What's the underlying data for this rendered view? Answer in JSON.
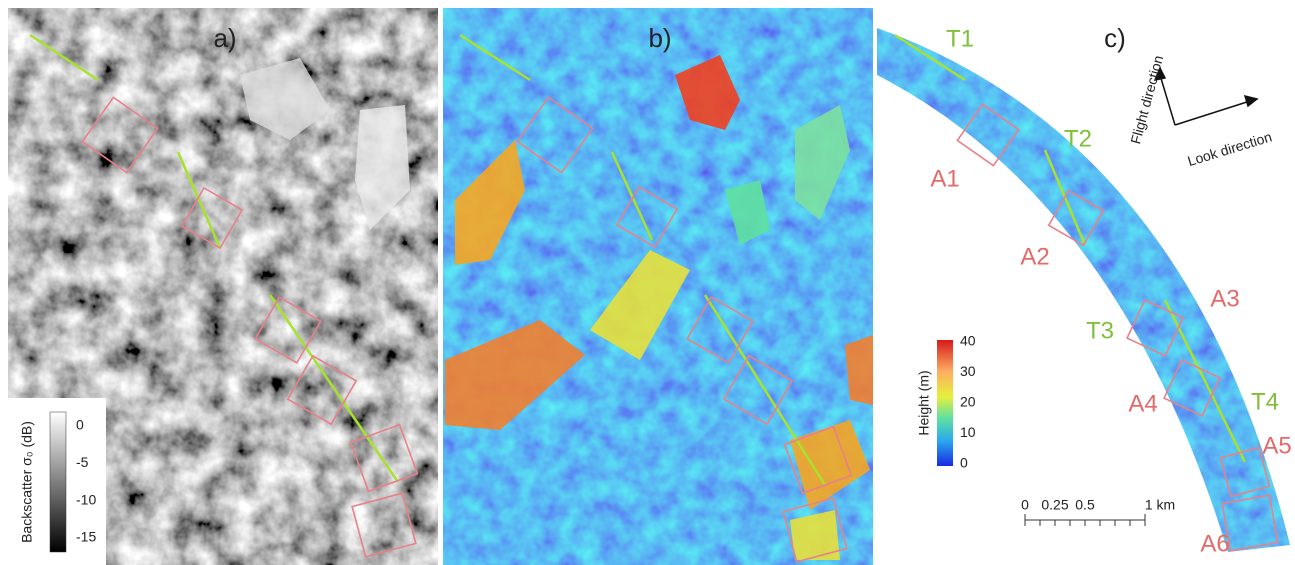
{
  "panels": [
    {
      "label": "a)",
      "colorbar": {
        "title": "Backscatter σ₀ (dB)",
        "ticks": [
          0,
          -5,
          -10,
          -15
        ]
      }
    },
    {
      "label": "b)"
    },
    {
      "label": "c)",
      "colorbar": {
        "title": "Height (m)",
        "ticks": [
          40,
          30,
          20,
          10,
          0
        ]
      },
      "transects": [
        "T1",
        "T2",
        "T3",
        "T4"
      ],
      "areas": [
        "A1",
        "A2",
        "A3",
        "A4",
        "A5",
        "A6"
      ],
      "arrows": {
        "flight": "Flight direction",
        "look": "Look direction"
      },
      "scale": {
        "labels": [
          "0",
          "0.25",
          "0.5",
          "1 km"
        ]
      }
    }
  ]
}
